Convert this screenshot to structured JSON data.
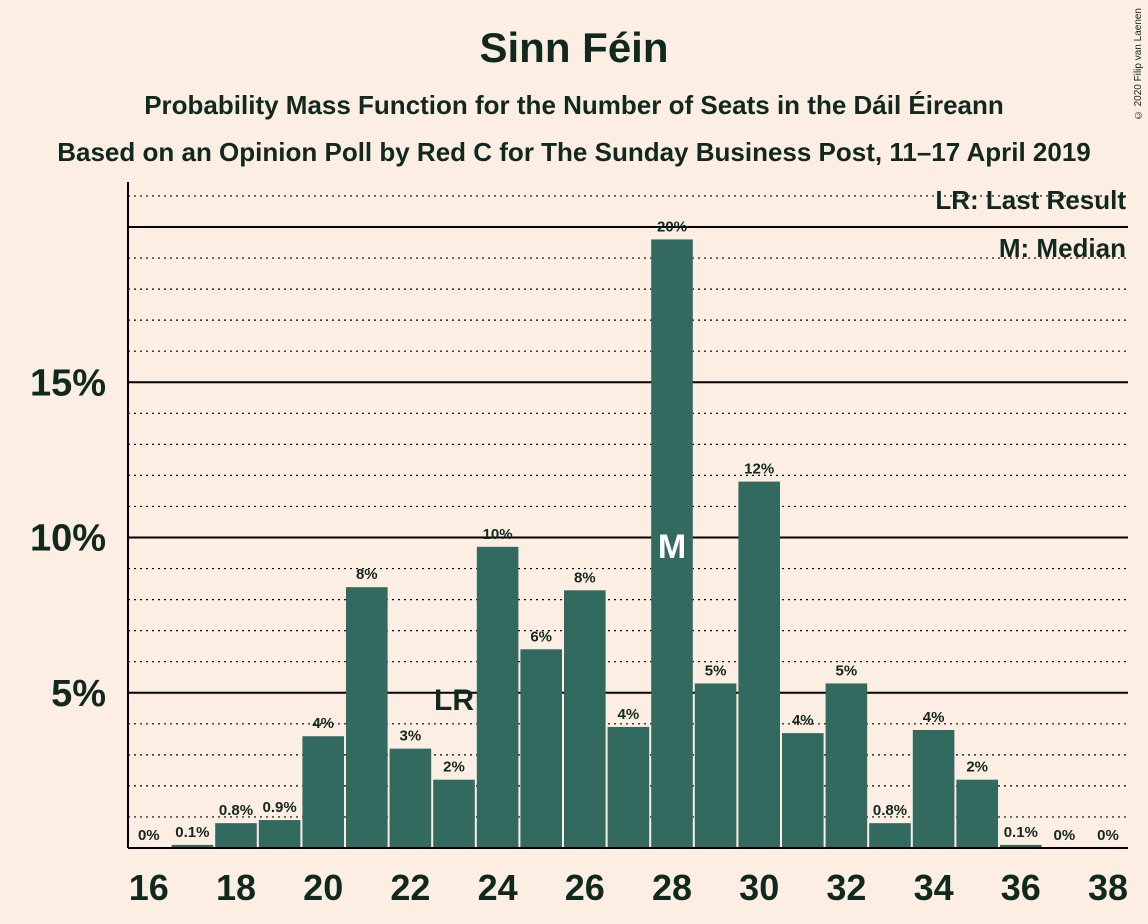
{
  "title": "Sinn Féin",
  "subtitle": "Probability Mass Function for the Number of Seats in the Dáil Éireann",
  "subtitle2": "Based on an Opinion Poll by Red C for The Sunday Business Post, 11–17 April 2019",
  "copyright": "© 2020 Filip van Laenen",
  "legend": {
    "last_result": "LR: Last Result",
    "median": "M: Median"
  },
  "colors": {
    "bar": "#336a60",
    "background": "#fdeee3",
    "text": "#10281e"
  },
  "chart_data": {
    "type": "bar",
    "title": "Sinn Féin",
    "x": [
      16,
      17,
      18,
      19,
      20,
      21,
      22,
      23,
      24,
      25,
      26,
      27,
      28,
      29,
      30,
      31,
      32,
      33,
      34,
      35,
      36,
      37,
      38
    ],
    "values": [
      0,
      0.1,
      0.8,
      0.9,
      3.6,
      8.4,
      3.2,
      2.2,
      9.7,
      6.4,
      8.3,
      3.9,
      19.6,
      5.3,
      11.8,
      3.7,
      5.3,
      0.8,
      3.8,
      2.2,
      0.1,
      0,
      0
    ],
    "labels": [
      "0%",
      "0.1%",
      "0.8%",
      "0.9%",
      "4%",
      "8%",
      "3%",
      "2%",
      "10%",
      "6%",
      "8%",
      "4%",
      "20%",
      "5%",
      "12%",
      "4%",
      "5%",
      "0.8%",
      "4%",
      "2%",
      "0.1%",
      "0%",
      "0%"
    ],
    "x_ticks": [
      "16",
      "18",
      "20",
      "22",
      "24",
      "26",
      "28",
      "30",
      "32",
      "34",
      "36",
      "38"
    ],
    "y_ticks": [
      "5%",
      "10%",
      "15%"
    ],
    "y_tick_values": [
      5,
      10,
      15
    ],
    "ylim": [
      0,
      21.4
    ],
    "last_result_seat": 23,
    "last_result_label": "LR",
    "median_seat": 28,
    "median_label": "M",
    "grid": "dotted minor every 1%, solid major every 5%"
  }
}
